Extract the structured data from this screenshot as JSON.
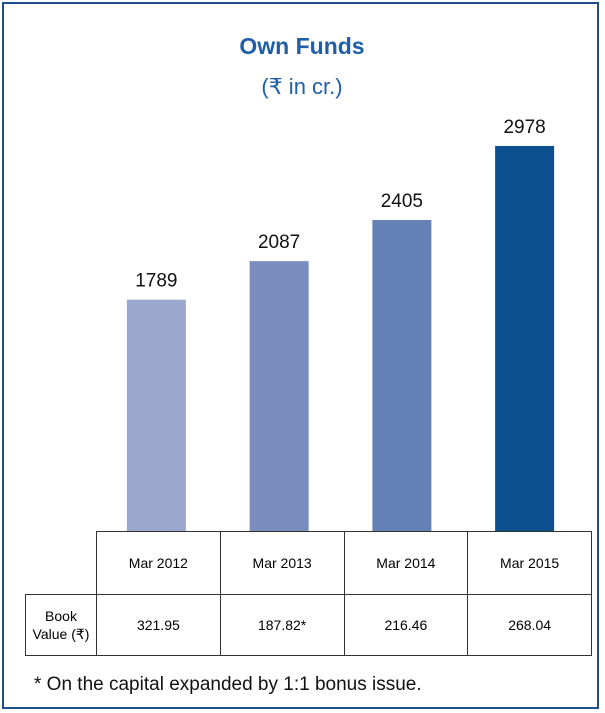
{
  "chart_data": {
    "type": "bar",
    "title": "Own Funds",
    "subtitle": "(₹ in cr.)",
    "categories": [
      "Mar 2012",
      "Mar 2013",
      "Mar 2014",
      "Mar 2015"
    ],
    "values": [
      1789,
      2087,
      2405,
      2978
    ],
    "colors": [
      "#9aa8cd",
      "#7b8cbe",
      "#6480b4",
      "#0b4f8f"
    ]
  },
  "table": {
    "row_label": "Book Value (₹)",
    "values": [
      "321.95",
      "187.82*",
      "216.46",
      "268.04"
    ]
  },
  "footnote": "* On the capital expanded by 1:1 bonus issue."
}
